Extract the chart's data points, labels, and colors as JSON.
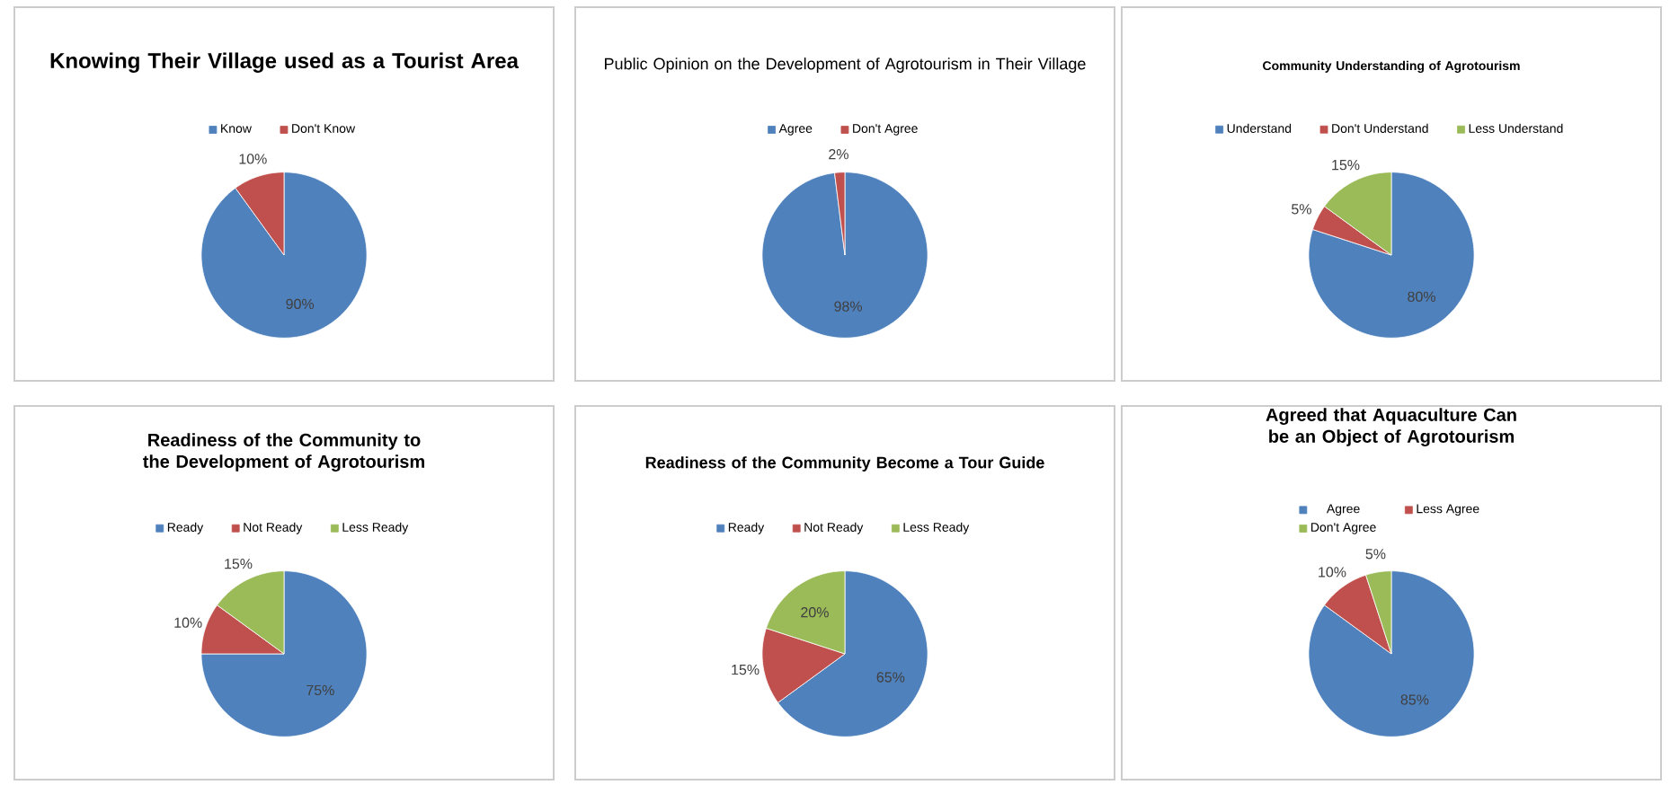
{
  "chart_data": [
    {
      "type": "pie",
      "title": "Knowing Their Village used as a Tourist Area",
      "legend": "top",
      "categories": [
        "Know",
        "Don't Know"
      ],
      "values": [
        90,
        10
      ],
      "colors": [
        "#4f81bd",
        "#c0504d"
      ],
      "value_labels": [
        "90%",
        "10%"
      ]
    },
    {
      "type": "pie",
      "title": "Public Opinion on the Development of Agrotourism in Their Village",
      "legend": "top",
      "categories": [
        "Agree",
        "Don't Agree"
      ],
      "values": [
        98,
        2
      ],
      "colors": [
        "#4f81bd",
        "#c0504d"
      ],
      "value_labels": [
        "98%",
        "2%"
      ]
    },
    {
      "type": "pie",
      "title": "Community Understanding of Agrotourism",
      "legend": "top",
      "categories": [
        "Understand",
        "Don't Understand",
        "Less Understand"
      ],
      "values": [
        80,
        5,
        15
      ],
      "colors": [
        "#4f81bd",
        "#c0504d",
        "#9bbb59"
      ],
      "value_labels": [
        "80%",
        "5%",
        "15%"
      ]
    },
    {
      "type": "pie",
      "title": "Readiness of the Community to the Development of Agrotourism",
      "legend": "top",
      "categories": [
        "Ready",
        "Not Ready",
        "Less Ready"
      ],
      "values": [
        75,
        10,
        15
      ],
      "colors": [
        "#4f81bd",
        "#c0504d",
        "#9bbb59"
      ],
      "value_labels": [
        "75%",
        "10%",
        "15%"
      ]
    },
    {
      "type": "pie",
      "title": "Readiness of the Community Become a Tour Guide",
      "legend": "top",
      "categories": [
        "Ready",
        "Not Ready",
        "Less Ready"
      ],
      "values": [
        65,
        15,
        20
      ],
      "colors": [
        "#4f81bd",
        "#c0504d",
        "#9bbb59"
      ],
      "value_labels": [
        "65%",
        "15%",
        "20%"
      ]
    },
    {
      "type": "pie",
      "title": "Agreed that Aquaculture Can be an Object of Agrotourism",
      "legend": "top",
      "categories": [
        "Agree",
        "Less Agree",
        "Don't Agree"
      ],
      "values": [
        85,
        10,
        5
      ],
      "colors": [
        "#4f81bd",
        "#c0504d",
        "#9bbb59"
      ],
      "value_labels": [
        "85%",
        "10%",
        "5%"
      ]
    }
  ]
}
